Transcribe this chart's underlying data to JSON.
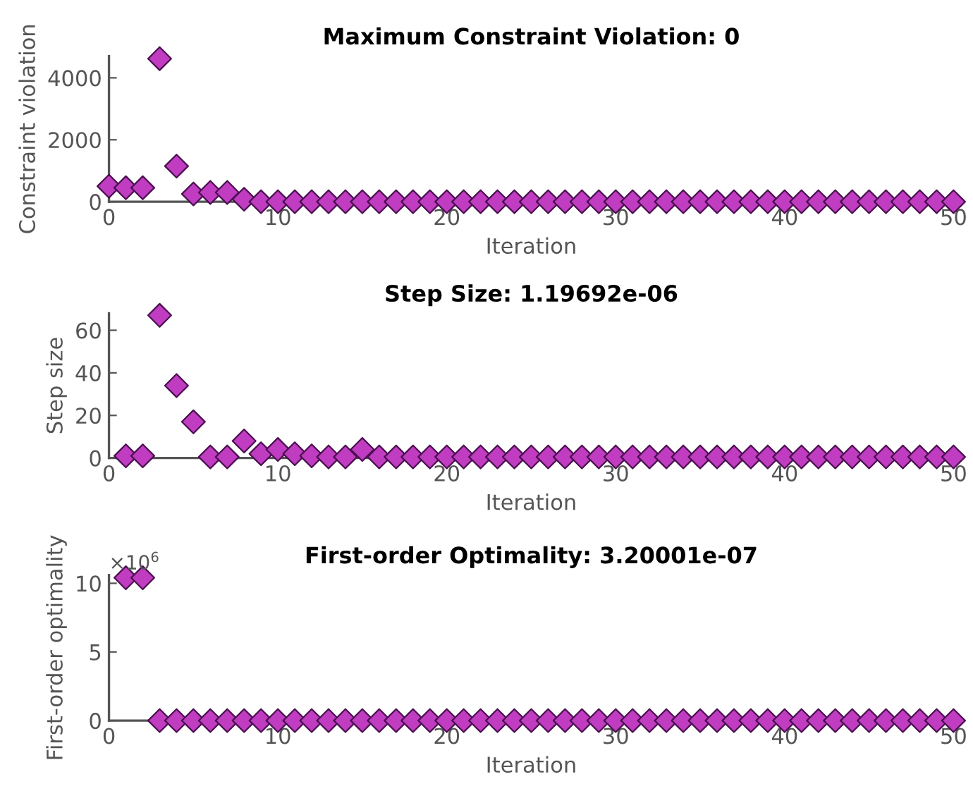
{
  "chart_data": [
    {
      "type": "scatter",
      "title": "Maximum Constraint Violation: 0",
      "xlabel": "Iteration",
      "ylabel": "Constraint violation",
      "marker": "diamond",
      "grid": false,
      "xlim": [
        0,
        50
      ],
      "xticks": [
        0,
        10,
        20,
        30,
        40,
        50
      ],
      "ylim": [
        0,
        4700
      ],
      "yticks": [
        0,
        2000,
        4000
      ],
      "x": [
        0,
        1,
        2,
        3,
        4,
        5,
        6,
        7,
        8,
        9,
        10,
        11,
        12,
        13,
        14,
        15,
        16,
        17,
        18,
        19,
        20,
        21,
        22,
        23,
        24,
        25,
        26,
        27,
        28,
        29,
        30,
        31,
        32,
        33,
        34,
        35,
        36,
        37,
        38,
        39,
        40,
        41,
        42,
        43,
        44,
        45,
        46,
        47,
        48,
        49,
        50
      ],
      "series": [
        {
          "color": "#c03cc0",
          "values": [
            500,
            450,
            450,
            4620,
            1150,
            250,
            300,
            300,
            80,
            0,
            0,
            0,
            0,
            0,
            0,
            0,
            0,
            0,
            0,
            0,
            0,
            0,
            0,
            0,
            0,
            0,
            0,
            0,
            0,
            0,
            0,
            0,
            0,
            0,
            0,
            0,
            0,
            0,
            0,
            0,
            0,
            0,
            0,
            0,
            0,
            0,
            0,
            0,
            0,
            0,
            0
          ]
        }
      ]
    },
    {
      "type": "scatter",
      "title": "Step Size: 1.19692e-06",
      "xlabel": "Iteration",
      "ylabel": "Step size",
      "marker": "diamond",
      "grid": false,
      "xlim": [
        0,
        50
      ],
      "xticks": [
        0,
        10,
        20,
        30,
        40,
        50
      ],
      "ylim": [
        0,
        68
      ],
      "yticks": [
        0,
        20,
        40,
        60
      ],
      "series": [
        {
          "color": "#c03cc0",
          "x": [
            1,
            2,
            3,
            4,
            5,
            6,
            7,
            8,
            9,
            10,
            11,
            12,
            13,
            14,
            15,
            16,
            17,
            18,
            19,
            20,
            21,
            22,
            23,
            24,
            25,
            26,
            27,
            28,
            29,
            30,
            31,
            32,
            33,
            34,
            35,
            36,
            37,
            38,
            39,
            40,
            41,
            42,
            43,
            44,
            45,
            46,
            47,
            48,
            49,
            50
          ],
          "values": [
            1,
            1,
            67,
            34,
            17,
            0.5,
            0.5,
            8,
            2,
            4,
            2,
            1,
            0.5,
            0.5,
            4,
            0.5,
            0.5,
            0.5,
            0.5,
            0.5,
            0.5,
            0.5,
            0.5,
            0.5,
            0.5,
            0.5,
            0.5,
            0.5,
            0.5,
            0.5,
            0.5,
            0.5,
            0.5,
            0.5,
            0.5,
            0.5,
            0.5,
            0.5,
            0.5,
            0.5,
            0.5,
            0.5,
            0.5,
            0.5,
            0.5,
            0.5,
            0.5,
            0.5,
            0.5,
            0.5
          ]
        }
      ]
    },
    {
      "type": "scatter",
      "title": "First-order Optimality: 3.20001e-07",
      "xlabel": "Iteration",
      "ylabel": "First-order optimality",
      "marker": "diamond",
      "grid": false,
      "xlim": [
        0,
        50
      ],
      "xticks": [
        0,
        10,
        20,
        30,
        40,
        50
      ],
      "ylim": [
        0,
        10.6
      ],
      "yticks": [
        0,
        5,
        10
      ],
      "annotations": [
        "×10$^{6}$"
      ],
      "series": [
        {
          "color": "#c03cc0",
          "x": [
            1,
            2,
            3,
            4,
            5,
            6,
            7,
            8,
            9,
            10,
            11,
            12,
            13,
            14,
            15,
            16,
            17,
            18,
            19,
            20,
            21,
            22,
            23,
            24,
            25,
            26,
            27,
            28,
            29,
            30,
            31,
            32,
            33,
            34,
            35,
            36,
            37,
            38,
            39,
            40,
            41,
            42,
            43,
            44,
            45,
            46,
            47,
            48,
            49,
            50
          ],
          "values": [
            10.4,
            10.4,
            0,
            0,
            0,
            0,
            0,
            0,
            0,
            0,
            0,
            0,
            0,
            0,
            0,
            0,
            0,
            0,
            0,
            0,
            0,
            0,
            0,
            0,
            0,
            0,
            0,
            0,
            0,
            0,
            0,
            0,
            0,
            0,
            0,
            0,
            0,
            0,
            0,
            0,
            0,
            0,
            0,
            0,
            0,
            0,
            0,
            0,
            0,
            0
          ]
        }
      ]
    }
  ]
}
